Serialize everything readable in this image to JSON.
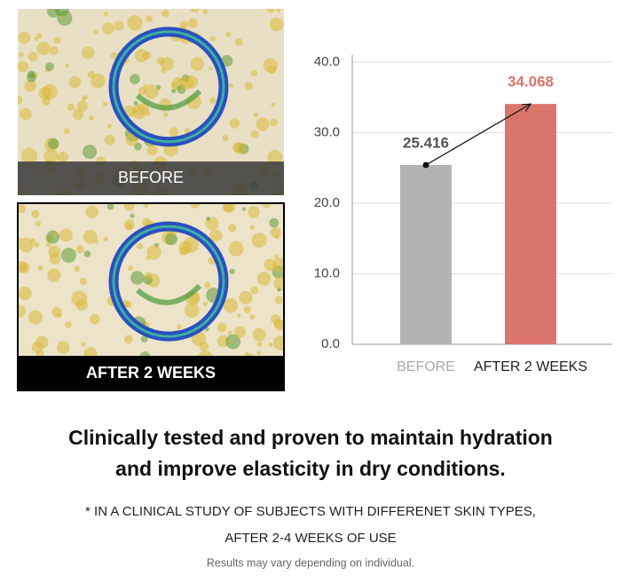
{
  "photos": {
    "before_caption": "BEFORE",
    "after_caption": "AFTER 2 WEEKS"
  },
  "chart_data": {
    "type": "bar",
    "categories": [
      "BEFORE",
      "AFTER 2 WEEKS"
    ],
    "values": [
      25.416,
      34.068
    ],
    "colors": [
      "#b3b3b3",
      "#d9756b"
    ],
    "value_label_colors": [
      "#555555",
      "#d9756b"
    ],
    "category_label_colors": [
      "#aaaaaa",
      "#222222"
    ],
    "ylim": [
      0,
      40
    ],
    "yticks": [
      {
        "value": 0,
        "label": "0.0"
      },
      {
        "value": 10,
        "label": "10.0"
      },
      {
        "value": 20,
        "label": "20.0"
      },
      {
        "value": 30,
        "label": "30.0"
      },
      {
        "value": 40,
        "label": "40.0"
      }
    ],
    "grid": true
  },
  "headline": [
    "Clinically tested and proven to maintain hydration",
    "and improve elasticity in dry conditions."
  ],
  "footnotes": [
    "* IN A CLINICAL STUDY OF SUBJECTS WITH DIFFERENET SKIN TYPES,",
    "AFTER 2-4 WEEKS OF USE"
  ],
  "disclaimer": "Results may vary depending on individual."
}
